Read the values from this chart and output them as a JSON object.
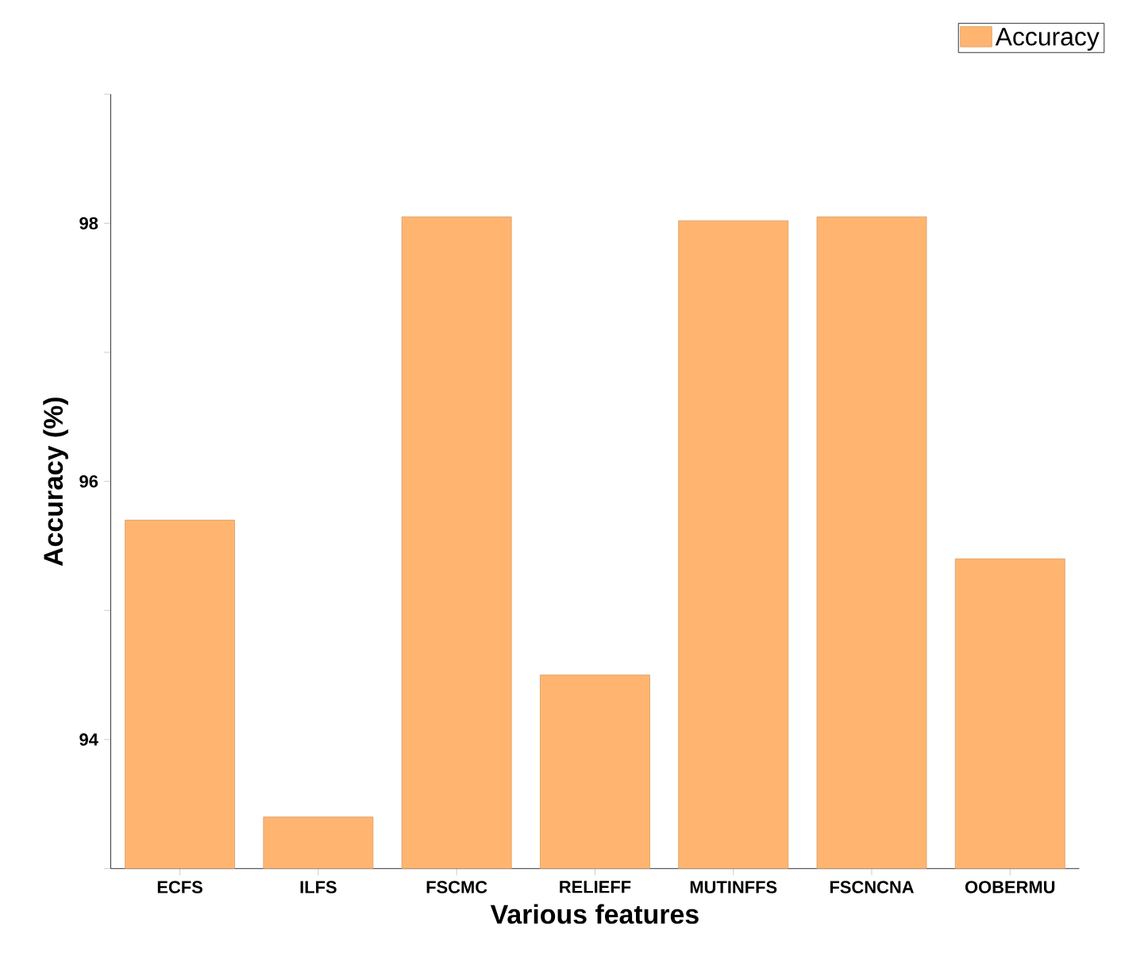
{
  "chart_data": {
    "type": "bar",
    "xlabel": "Various features",
    "ylabel": "Accuracy (%)",
    "categories": [
      "ECFS",
      "ILFS",
      "FSCMC",
      "RELIEFF",
      "MUTINFFS",
      "FSCNCNA",
      "OOBERMU"
    ],
    "series": [
      {
        "name": "Accuracy",
        "color": "#ffb570",
        "values": [
          95.7,
          93.4,
          98.05,
          94.5,
          98.02,
          98.05,
          95.4
        ]
      }
    ],
    "ylim": [
      93,
      99
    ],
    "yticks": [
      {
        "value": 93,
        "label": null
      },
      94,
      {
        "value": 95,
        "label": null
      },
      96,
      {
        "value": 97,
        "label": null
      },
      98,
      {
        "value": 99,
        "label": null
      }
    ],
    "legend": "top right",
    "grid": false
  }
}
